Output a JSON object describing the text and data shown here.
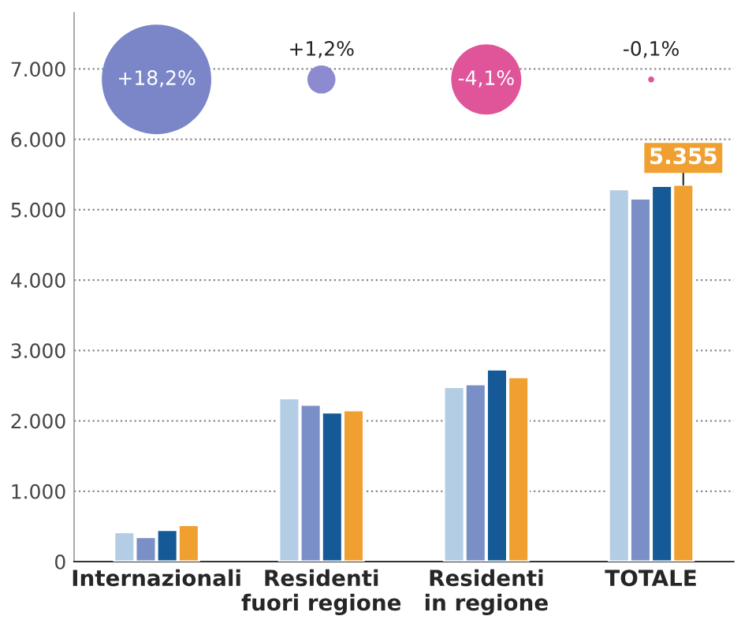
{
  "chart_data": {
    "type": "bar",
    "categories": [
      "Internazionali",
      "Residenti\nfuori regione",
      "Residenti\nin regione",
      "TOTALE"
    ],
    "series": [
      {
        "color": "#b3cde4",
        "values": [
          420,
          2320,
          2480,
          5290
        ]
      },
      {
        "color": "#7b8fc7",
        "values": [
          350,
          2230,
          2520,
          5160
        ]
      },
      {
        "color": "#155a96",
        "values": [
          450,
          2120,
          2730,
          5340
        ]
      },
      {
        "color": "#f0a030",
        "values": [
          520,
          2150,
          2620,
          5355
        ],
        "value_labels": [
          null,
          null,
          null,
          "5.355"
        ]
      },
      {
        "type": "bubble",
        "colors": [
          "#7a86c8",
          "#8e8ad0",
          "#e0559a",
          "#e0559a"
        ],
        "values": [
          6850,
          6850,
          6850,
          6850
        ],
        "sizes": [
          1,
          0.066,
          0.41,
          0.003
        ]
      }
    ],
    "annotations": [
      {
        "text": "+18,2%",
        "x": "Internazionali",
        "y": 6850
      },
      {
        "text": "+1,2%",
        "x": "Residenti\nfuori regione",
        "y": 6850
      },
      {
        "text": "-4,1%",
        "x": "Residenti\nin regione",
        "y": 6850
      },
      {
        "text": "-0,1%",
        "x": "TOTALE",
        "y": 6850
      }
    ],
    "ylim": [
      0,
      7800
    ],
    "yticks": [
      {
        "value": 0,
        "label": "0"
      },
      {
        "value": 1000,
        "label": "1.000"
      },
      {
        "value": 2000,
        "label": "2.000"
      },
      {
        "value": 3000,
        "label": "3.000"
      },
      {
        "value": 4000,
        "label": "4.000"
      },
      {
        "value": 5000,
        "label": "5.000"
      },
      {
        "value": 6000,
        "label": "6.000"
      },
      {
        "value": 7000,
        "label": "7.000"
      }
    ],
    "grid": "y"
  }
}
